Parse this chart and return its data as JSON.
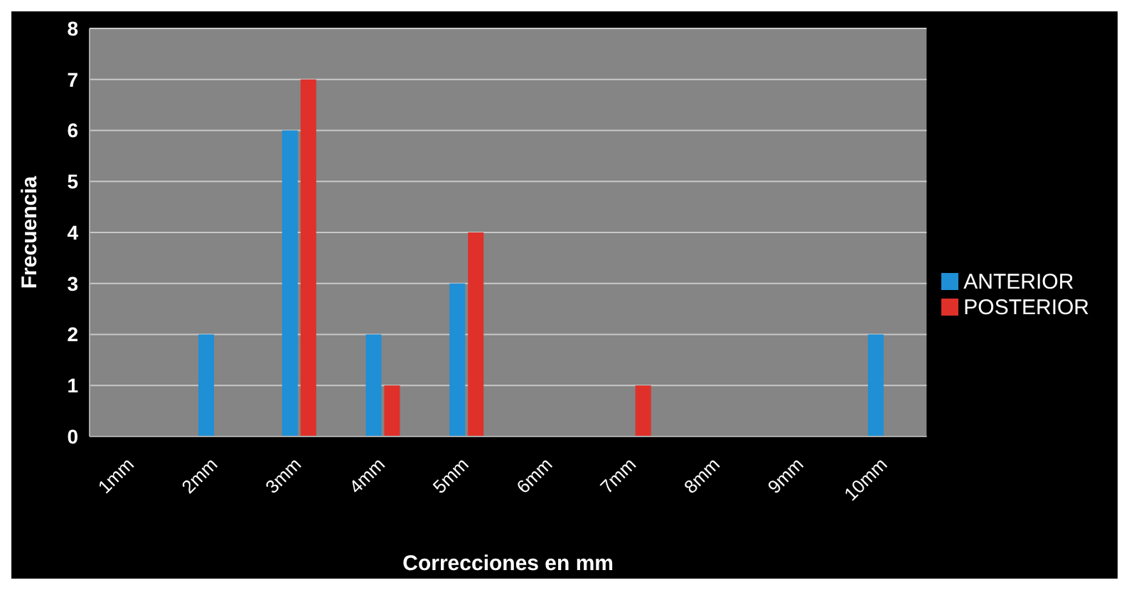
{
  "chart_data": {
    "type": "bar",
    "xlabel": "Correcciones en mm",
    "ylabel": "Frecuencia",
    "categories": [
      "1mm",
      "2mm",
      "3mm",
      "4mm",
      "5mm",
      "6mm",
      "7mm",
      "8mm",
      "9mm",
      "10mm"
    ],
    "series": [
      {
        "name": "ANTERIOR",
        "color": "#1f8fd6",
        "values": [
          0,
          2,
          6,
          2,
          3,
          0,
          0,
          0,
          0,
          2
        ]
      },
      {
        "name": "POSTERIOR",
        "color": "#e0302a",
        "values": [
          0,
          0,
          7,
          1,
          4,
          0,
          1,
          0,
          0,
          0
        ]
      }
    ],
    "ylim": [
      0,
      8
    ],
    "yticks": [
      0,
      1,
      2,
      3,
      4,
      5,
      6,
      7,
      8
    ],
    "grid": "y",
    "legend": "right"
  }
}
